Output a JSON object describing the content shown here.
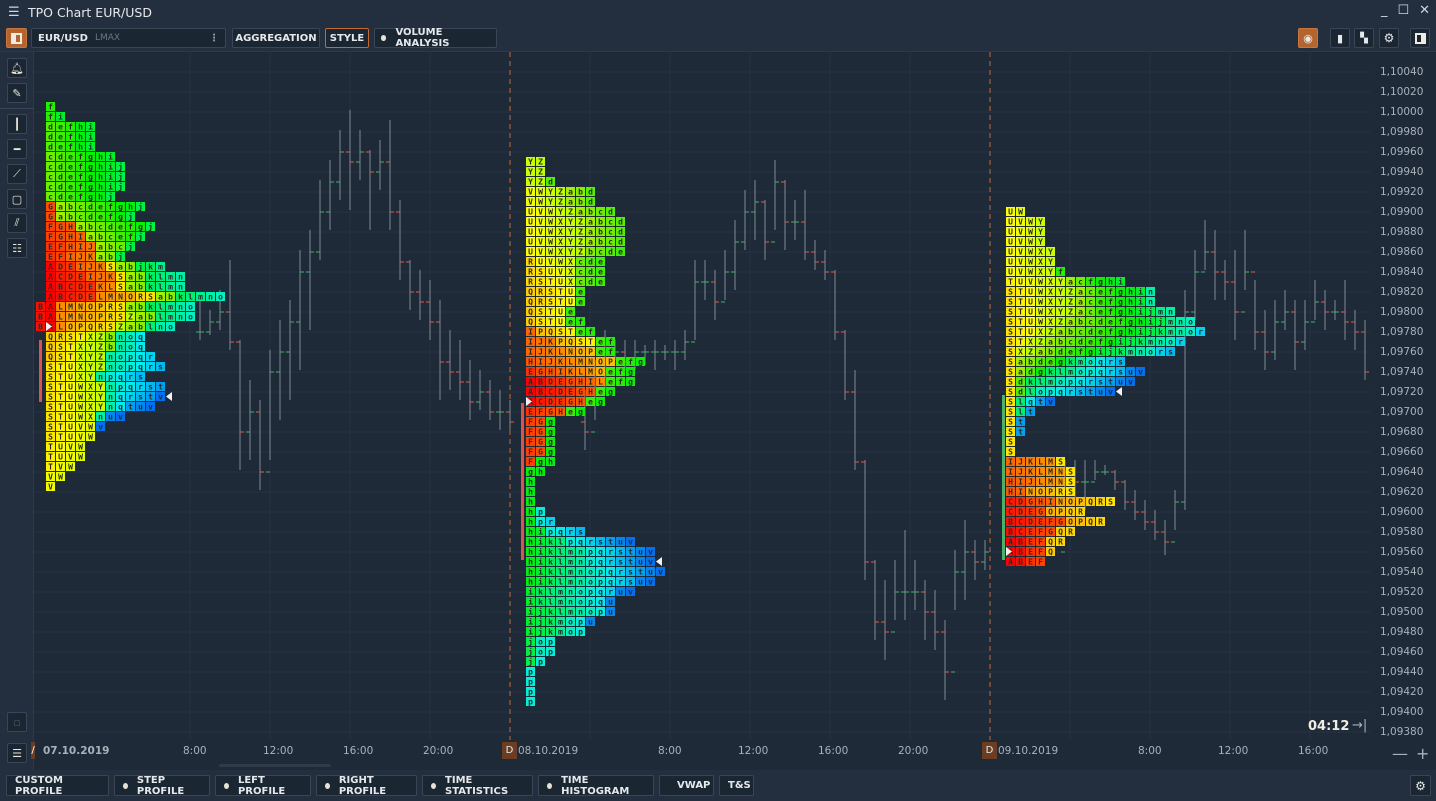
{
  "window": {
    "title": "TPO Chart EUR/USD",
    "menu_icon": "hamburger-icon",
    "controls": [
      "minimize-icon",
      "maximize-icon",
      "close-icon"
    ]
  },
  "toolbar": {
    "symbol": "EUR/USD",
    "exchange": "LMAX",
    "aggregation_label": "AGGREGATION",
    "style_label": "STYLE",
    "volume_analysis_label": "VOLUME ANALYSIS",
    "right_icons": [
      "indicator-icon",
      "mouse-icon",
      "template-icon",
      "gear-icon",
      "panel-icon"
    ]
  },
  "left_tools": [
    "bell-icon",
    "pencil-icon",
    "vertical-line-icon",
    "horizontal-line-icon",
    "trend-line-icon",
    "rectangle-icon",
    "parallel-lines-icon",
    "fibonacci-icon"
  ],
  "bottom_tabs": [
    {
      "label": "CUSTOM PROFILE",
      "dot": false
    },
    {
      "label": "STEP PROFILE",
      "dot": true
    },
    {
      "label": "LEFT PROFILE",
      "dot": true
    },
    {
      "label": "RIGHT PROFILE",
      "dot": true
    },
    {
      "label": "TIME STATISTICS",
      "dot": true
    },
    {
      "label": "TIME HISTOGRAM",
      "dot": true
    },
    {
      "label": "VWAP",
      "dot": true
    },
    {
      "label": "T&S",
      "dot": false
    }
  ],
  "countdown": "04:12",
  "zoom_out": "—",
  "zoom_in": "+",
  "colors": {
    "accent": "#b4642e",
    "up": "#4caf6a",
    "down": "#e05a50",
    "session_line": "#c06a35",
    "background": "#1f2a39"
  },
  "chart_data": {
    "type": "tpo",
    "price_axis": {
      "min": 1.0938,
      "max": 1.1004,
      "step": 0.0002,
      "labels": [
        "1,10040",
        "1,10020",
        "1,10000",
        "1,09980",
        "1,09960",
        "1,09940",
        "1,09920",
        "1,09900",
        "1,09880",
        "1,09860",
        "1,09840",
        "1,09820",
        "1,09800",
        "1,09780",
        "1,09760",
        "1,09740",
        "1,09720",
        "1,09700",
        "1,09680",
        "1,09660",
        "1,09640",
        "1,09620",
        "1,09600",
        "1,09580",
        "1,09560",
        "1,09540",
        "1,09520",
        "1,09500",
        "1,09480",
        "1,09460",
        "1,09440",
        "1,09420",
        "1,09400",
        "1,09380"
      ]
    },
    "time_axis": [
      {
        "label": "07.10.2019",
        "session": true,
        "marker": "/",
        "day": 0,
        "hour": 0
      },
      {
        "label": "8:00",
        "day": 0,
        "hour": 8
      },
      {
        "label": "12:00",
        "day": 0,
        "hour": 12
      },
      {
        "label": "16:00",
        "day": 0,
        "hour": 16
      },
      {
        "label": "20:00",
        "day": 0,
        "hour": 20
      },
      {
        "label": "08.10.2019",
        "session": true,
        "marker": "D",
        "day": 1,
        "hour": 0
      },
      {
        "label": "8:00",
        "day": 1,
        "hour": 8
      },
      {
        "label": "12:00",
        "day": 1,
        "hour": 12
      },
      {
        "label": "16:00",
        "day": 1,
        "hour": 16
      },
      {
        "label": "20:00",
        "day": 1,
        "hour": 20
      },
      {
        "label": "09.10.2019",
        "session": true,
        "marker": "D",
        "day": 2,
        "hour": 0
      },
      {
        "label": "8:00",
        "day": 2,
        "hour": 8
      },
      {
        "label": "12:00",
        "day": 2,
        "hour": 12
      },
      {
        "label": "16:00",
        "day": 2,
        "hour": 16
      }
    ],
    "profiles": [
      {
        "session": "07.10.2019",
        "top_price": 1.1001,
        "poc_row": 22,
        "marker_row": 29,
        "rows": [
          " f",
          " fi",
          " defhi",
          " defhi",
          " defhi",
          " cdefghi",
          " cdefghij",
          " cdefghij",
          " cdefghij",
          " cdefghj",
          " Gabcdefghj",
          " Gabcdefgj",
          " FGHabcdefgj",
          " FGHIabcefj",
          " EFHIJabcj",
          " EFIJKabj",
          " ADEIJKSabjkm",
          " ACDEIJKSabklmn",
          " ABCDEKLSabklmn",
          " ABCDELMNORSabklmno",
          "BALMNOPRSabklmno",
          "BALMNOPRSZablmno",
          "BALOPQRSZablno",
          " QRSTXZbnoq",
          " QSTXYZbnoq",
          " QSTXYZnopqr",
          " STUXYZnopqrs",
          " STUXYnpqrs",
          " STUWXYnpqrst",
          " STUWXYnqrstv",
          " STUWXYnqtuv",
          " STUWXnuv",
          " STUVWv",
          " STUVW",
          " TUVW",
          " TUVW",
          " TVW",
          " VW",
          " V"
        ]
      },
      {
        "session": "08.10.2019",
        "top_price": 1.09955,
        "poc_row": 24,
        "marker_row": 40,
        "rows": [
          "YZ",
          "YZ",
          "YZd",
          "VWYZabd",
          "VWYZabd",
          "UVWYZabcd",
          "UVWXYZabcd",
          "UVWXYZabcd",
          "UVWXYZabcd",
          "UVWXYZbcde",
          "RUVWXcde",
          "RSUVXcde",
          "RSTUXcde",
          "QRSTUe",
          "QRSTUe",
          "QSTUe",
          "QSTUef",
          "IPQSTef",
          "IJKPQSTef",
          "IJKLNOPef",
          "HIJKLMNOPefg",
          "EGHIKLMOefg",
          "ABDEGHILefg",
          "ABCDEGHeg",
          "ACDEGHeg",
          "EFGHeg",
          "FGg",
          "FGg",
          "FGg",
          "FGg",
          "Fgh",
          "gh",
          "h",
          "h",
          "h",
          "hp",
          "hpr",
          "hipqrs",
          "hiklpqrstuv",
          "hiklmnpqrstuv",
          "hiklmnpqrstuv",
          "hiklmnopqrstuv",
          "hiklmnopqrsuv",
          "iklmnopqruv",
          "iklmnopqu",
          "ijklmnopu",
          "ijkmopu",
          "ijkmop",
          "jop",
          "jop",
          "jp",
          "p",
          "p",
          "p",
          "p"
        ]
      },
      {
        "session": "09.10.2019",
        "top_price": 1.09905,
        "poc_row": 34,
        "marker_row": 18,
        "rows": [
          "UW",
          "UVWY",
          "UVWY",
          "UVWY",
          "UVWXY",
          "UVWXY",
          "UVWXYf",
          "TUVWXYacfghi",
          "STUWXYZacefghin",
          "STUWXYZacefghin",
          "STUWXYZacefghijmn",
          "STUWXZabcdefghijmno",
          "STUXZabcdefghijkmnor",
          "STXZabcdefgijkmnor",
          "SXZabdefgijkmnors",
          "Sabdegkmoqrs",
          "Sadgklmopqrsuv",
          "Sdklmopqrstuv",
          "Sdlopqrstuv",
          "Slqtv",
          "Slt",
          "St",
          "St",
          "S",
          "S",
          "IJKLMS",
          "IJKLMNS",
          "HIJLMNS",
          "HINOPRS",
          "CDGHINOPQRS",
          "CDEGOPQR",
          "BCDEFGOPQR",
          "BCEFGQR",
          "ABEFQR",
          "ABEFQ",
          "ABEF"
        ]
      }
    ],
    "bars": [
      [
        "07.10 08:00",
        1.09812,
        1.09772,
        1.0978
      ],
      [
        "07.10 08:30",
        1.09802,
        1.09777,
        1.0979
      ],
      [
        "07.10 09:00",
        1.09822,
        1.09782,
        1.098
      ],
      [
        "07.10 09:30",
        1.09852,
        1.09762,
        1.0977
      ],
      [
        "07.10 10:00",
        1.09772,
        1.09642,
        1.0968
      ],
      [
        "07.10 10:30",
        1.09732,
        1.09652,
        1.097
      ],
      [
        "07.10 11:00",
        1.09712,
        1.09622,
        1.0964
      ],
      [
        "07.10 11:30",
        1.09762,
        1.09652,
        1.0974
      ],
      [
        "07.10 12:00",
        1.09792,
        1.09692,
        1.0976
      ],
      [
        "07.10 12:30",
        1.09812,
        1.09712,
        1.0979
      ],
      [
        "07.10 13:00",
        1.09862,
        1.09742,
        1.0984
      ],
      [
        "07.10 13:30",
        1.09882,
        1.09782,
        1.0986
      ],
      [
        "07.10 14:00",
        1.09932,
        1.09852,
        1.099
      ],
      [
        "07.10 14:30",
        1.09952,
        1.09882,
        1.0993
      ],
      [
        "07.10 15:00",
        1.09982,
        1.09912,
        1.0996
      ],
      [
        "07.10 15:30",
        1.10002,
        1.09902,
        1.0995
      ],
      [
        "07.10 16:00",
        1.09982,
        1.09932,
        1.0996
      ],
      [
        "07.10 16:30",
        1.09962,
        1.09882,
        1.0994
      ],
      [
        "07.10 17:00",
        1.09972,
        1.09922,
        1.0995
      ],
      [
        "07.10 17:30",
        1.09992,
        1.09882,
        1.099
      ],
      [
        "07.10 18:00",
        1.09912,
        1.09832,
        1.0985
      ],
      [
        "07.10 18:30",
        1.09852,
        1.09802,
        1.0982
      ],
      [
        "07.10 19:00",
        1.09842,
        1.09792,
        1.0981
      ],
      [
        "07.10 19:30",
        1.09832,
        1.09772,
        1.0979
      ],
      [
        "07.10 20:00",
        1.09812,
        1.09712,
        1.0975
      ],
      [
        "07.10 20:30",
        1.09782,
        1.09722,
        1.0974
      ],
      [
        "07.10 21:00",
        1.09772,
        1.09712,
        1.0973
      ],
      [
        "07.10 21:30",
        1.09752,
        1.09692,
        1.0971
      ],
      [
        "07.10 22:00",
        1.09742,
        1.09702,
        1.0972
      ],
      [
        "07.10 22:30",
        1.09732,
        1.09692,
        1.097
      ],
      [
        "07.10 23:00",
        1.09722,
        1.09682,
        1.097
      ],
      [
        "07.10 23:30",
        1.09712,
        1.09682,
        1.0969
      ],
      [
        "08.10 03:30",
        1.09722,
        1.09662,
        1.0968
      ],
      [
        "08.10 04:00",
        1.09752,
        1.09692,
        1.0974
      ],
      [
        "08.10 04:30",
        1.09782,
        1.09722,
        1.0976
      ],
      [
        "08.10 05:00",
        1.09772,
        1.09752,
        1.0976
      ],
      [
        "08.10 05:30",
        1.09772,
        1.09742,
        1.0975
      ],
      [
        "08.10 06:00",
        1.09772,
        1.09742,
        1.0976
      ],
      [
        "08.10 06:30",
        1.09767,
        1.09747,
        1.0976
      ],
      [
        "08.10 07:00",
        1.09772,
        1.09742,
        1.0976
      ],
      [
        "08.10 07:30",
        1.09767,
        1.09752,
        1.0976
      ],
      [
        "08.10 08:00",
        1.09772,
        1.09742,
        1.0976
      ],
      [
        "08.10 08:30",
        1.09782,
        1.09752,
        1.0977
      ],
      [
        "08.10 09:00",
        1.09852,
        1.09772,
        1.0983
      ],
      [
        "08.10 09:30",
        1.09852,
        1.09812,
        1.0983
      ],
      [
        "08.10 10:00",
        1.09842,
        1.09792,
        1.0981
      ],
      [
        "08.10 10:30",
        1.09862,
        1.09812,
        1.0984
      ],
      [
        "08.10 11:00",
        1.09892,
        1.09822,
        1.0987
      ],
      [
        "08.10 11:30",
        1.09922,
        1.09862,
        1.099
      ],
      [
        "08.10 12:00",
        1.09932,
        1.09872,
        1.0991
      ],
      [
        "08.10 12:30",
        1.09912,
        1.09852,
        1.0987
      ],
      [
        "08.10 13:00",
        1.09952,
        1.09882,
        1.0993
      ],
      [
        "08.10 13:30",
        1.09932,
        1.09862,
        1.0989
      ],
      [
        "08.10 14:00",
        1.09912,
        1.09872,
        1.0989
      ],
      [
        "08.10 14:30",
        1.09922,
        1.09852,
        1.0986
      ],
      [
        "08.10 15:00",
        1.09872,
        1.09842,
        1.0985
      ],
      [
        "08.10 15:30",
        1.09862,
        1.09832,
        1.0984
      ],
      [
        "08.10 16:00",
        1.09842,
        1.09772,
        1.0978
      ],
      [
        "08.10 16:30",
        1.09782,
        1.09712,
        1.0972
      ],
      [
        "08.10 17:00",
        1.09742,
        1.09642,
        1.0965
      ],
      [
        "08.10 17:30",
        1.09652,
        1.09532,
        1.0955
      ],
      [
        "08.10 18:00",
        1.09552,
        1.09472,
        1.0949
      ],
      [
        "08.10 18:30",
        1.09532,
        1.09452,
        1.0948
      ],
      [
        "08.10 19:00",
        1.09552,
        1.09492,
        1.0952
      ],
      [
        "08.10 19:30",
        1.09582,
        1.09492,
        1.0952
      ],
      [
        "08.10 20:00",
        1.09552,
        1.09502,
        1.0952
      ],
      [
        "08.10 20:30",
        1.09532,
        1.09472,
        1.095
      ],
      [
        "08.10 21:00",
        1.09522,
        1.09462,
        1.0948
      ],
      [
        "08.10 21:30",
        1.09492,
        1.09412,
        1.0944
      ],
      [
        "08.10 22:00",
        1.09562,
        1.09502,
        1.0954
      ],
      [
        "08.10 22:30",
        1.09592,
        1.09512,
        1.0956
      ],
      [
        "08.10 23:00",
        1.09572,
        1.09532,
        1.0955
      ],
      [
        "08.10 23:30",
        1.09572,
        1.09542,
        1.0956
      ],
      [
        "09.10 03:30",
        1.09652,
        1.09622,
        1.0964
      ],
      [
        "09.10 04:00",
        1.09652,
        1.09612,
        1.0963
      ],
      [
        "09.10 04:30",
        1.09652,
        1.09602,
        1.0963
      ],
      [
        "09.10 05:00",
        1.09652,
        1.09632,
        1.0964
      ],
      [
        "09.10 05:30",
        1.09647,
        1.09637,
        1.0964
      ],
      [
        "09.10 06:00",
        1.09642,
        1.09622,
        1.0963
      ],
      [
        "09.10 06:30",
        1.09632,
        1.09602,
        1.0961
      ],
      [
        "09.10 07:00",
        1.09622,
        1.09592,
        1.096
      ],
      [
        "09.10 07:30",
        1.09612,
        1.09582,
        1.0959
      ],
      [
        "09.10 08:00",
        1.09602,
        1.09572,
        1.0958
      ],
      [
        "09.10 08:30",
        1.09592,
        1.09557,
        1.0957
      ],
      [
        "09.10 09:00",
        1.09622,
        1.09582,
        1.0961
      ],
      [
        "09.10 09:30",
        1.09822,
        1.09602,
        1.098
      ],
      [
        "09.10 10:00",
        1.09862,
        1.09792,
        1.0984
      ],
      [
        "09.10 10:30",
        1.09892,
        1.09842,
        1.0986
      ],
      [
        "09.10 11:00",
        1.09882,
        1.09812,
        1.0984
      ],
      [
        "09.10 11:30",
        1.09852,
        1.09812,
        1.0983
      ],
      [
        "09.10 12:00",
        1.09862,
        1.09772,
        1.098
      ],
      [
        "09.10 12:30",
        1.09882,
        1.09822,
        1.0984
      ],
      [
        "09.10 13:00",
        1.09832,
        1.09762,
        1.0978
      ],
      [
        "09.10 13:30",
        1.09802,
        1.09742,
        1.0976
      ],
      [
        "09.10 14:00",
        1.09812,
        1.09752,
        1.0979
      ],
      [
        "09.10 14:30",
        1.09822,
        1.09782,
        1.098
      ],
      [
        "09.10 15:00",
        1.09812,
        1.09742,
        1.0977
      ],
      [
        "09.10 15:30",
        1.09812,
        1.09762,
        1.0979
      ],
      [
        "09.10 16:00",
        1.09832,
        1.09792,
        1.0981
      ],
      [
        "09.10 16:30",
        1.09822,
        1.09782,
        1.098
      ],
      [
        "09.10 17:00",
        1.09812,
        1.09792,
        1.098
      ],
      [
        "09.10 17:30",
        1.09832,
        1.09772,
        1.0979
      ],
      [
        "09.10 18:00",
        1.09802,
        1.09762,
        1.0978
      ],
      [
        "09.10 18:30",
        1.09792,
        1.09732,
        1.0974
      ]
    ]
  }
}
